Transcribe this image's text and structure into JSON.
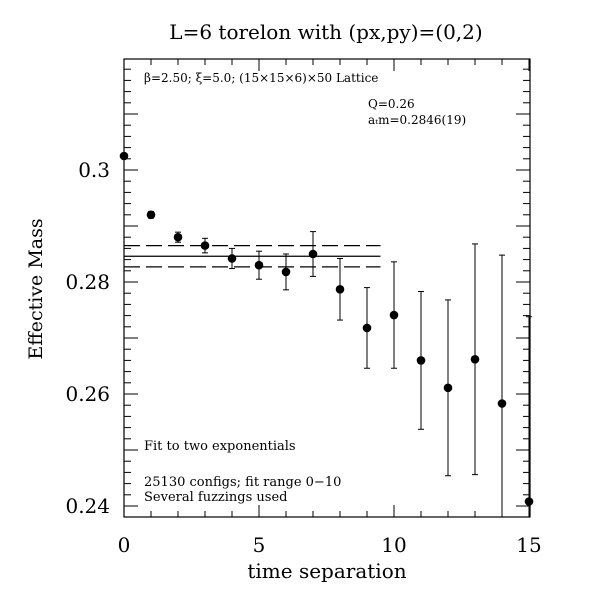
{
  "chart_data": {
    "type": "scatter",
    "title": "L=6 torelon with (px,py)=(0,2)",
    "xlabel": "time separation",
    "ylabel": "Effective Mass",
    "xlim": [
      0,
      15
    ],
    "ylim": [
      0.238,
      0.32
    ],
    "xticks": [
      0,
      5,
      10,
      15
    ],
    "yticks": [
      0.24,
      0.26,
      0.28,
      0.3
    ],
    "ytick_labels": [
      "0.24",
      "0.26",
      "0.28",
      "0.3"
    ],
    "annotations": {
      "lattice": "β=2.50; ξ=5.0; (15×15×6)×50 Lattice",
      "q": "Q=0.26",
      "mass": "aₜm=0.2846(19)",
      "fit_type": "Fit to two exponentials",
      "configs": "25130 configs; fit range 0−10",
      "fuzzings": "Several fuzzings used"
    },
    "fit": {
      "central": 0.2846,
      "error": 0.0019,
      "x_range": [
        0,
        9.5
      ]
    },
    "points": [
      {
        "x": 0,
        "y": 0.3025,
        "err": 0.0002
      },
      {
        "x": 1,
        "y": 0.292,
        "err": 0.0006
      },
      {
        "x": 2,
        "y": 0.288,
        "err": 0.0009
      },
      {
        "x": 3,
        "y": 0.2865,
        "err": 0.0013
      },
      {
        "x": 4,
        "y": 0.2842,
        "err": 0.0018
      },
      {
        "x": 5,
        "y": 0.283,
        "err": 0.0025
      },
      {
        "x": 6,
        "y": 0.2818,
        "err": 0.0032
      },
      {
        "x": 7,
        "y": 0.285,
        "err": 0.004
      },
      {
        "x": 8,
        "y": 0.2787,
        "err": 0.0055
      },
      {
        "x": 9,
        "y": 0.2718,
        "err": 0.0072
      },
      {
        "x": 10,
        "y": 0.2741,
        "err": 0.0095
      },
      {
        "x": 11,
        "y": 0.266,
        "err": 0.0123
      },
      {
        "x": 12,
        "y": 0.2611,
        "err": 0.0157
      },
      {
        "x": 13,
        "y": 0.2662,
        "err": 0.0206
      },
      {
        "x": 14,
        "y": 0.2583,
        "err": 0.0265
      },
      {
        "x": 15,
        "y": 0.2408,
        "err": 0.033
      }
    ]
  }
}
